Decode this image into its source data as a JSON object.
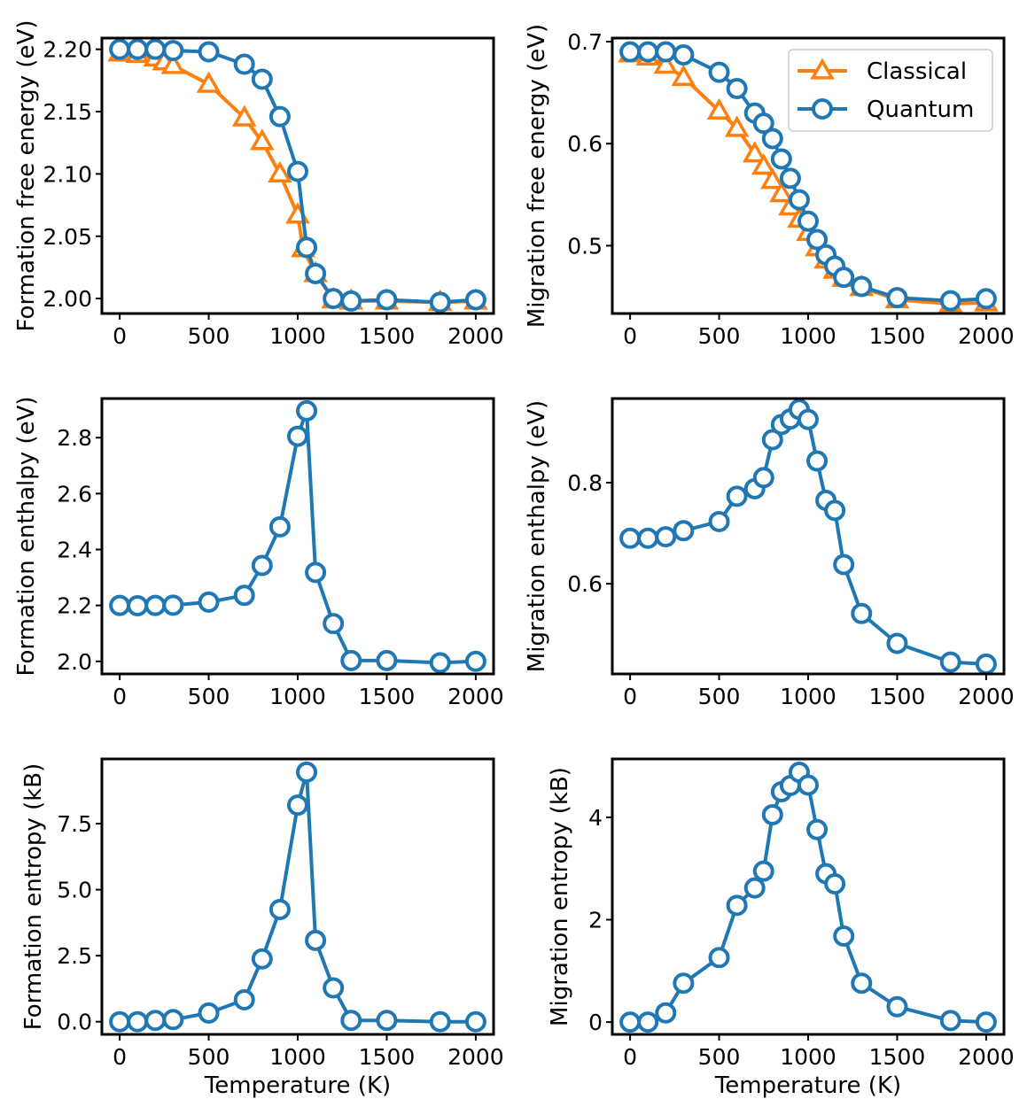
{
  "colors": {
    "classical": "#ff7f0e",
    "quantum": "#1f77b4",
    "axis": "#000000"
  },
  "legend": {
    "placement": "upper-right",
    "entries": [
      "Classical",
      "Quantum"
    ]
  },
  "chart_data": [
    {
      "id": "formation-free-energy",
      "type": "line",
      "ylabel": "Formation free energy (eV)",
      "xlabel": "",
      "xlim": [
        -100,
        2100
      ],
      "ylim": [
        1.988,
        2.209
      ],
      "xticks": [
        0,
        500,
        1000,
        1500,
        2000
      ],
      "xtick_labels": [
        "0",
        "500",
        "1000",
        "1500",
        "2000"
      ],
      "yticks": [
        2.0,
        2.05,
        2.1,
        2.15,
        2.2
      ],
      "ytick_labels": [
        "2.00",
        "2.05",
        "2.10",
        "2.15",
        "2.20"
      ],
      "legend": false,
      "series": [
        {
          "name": "Classical",
          "marker": "triangle",
          "color": "#ff7f0e",
          "x": [
            0,
            100,
            200,
            250,
            300,
            500,
            700,
            800,
            900,
            1000,
            1030,
            1100,
            1200,
            1300,
            1500,
            1800,
            2000
          ],
          "y": [
            2.197,
            2.196,
            2.193,
            2.19,
            2.187,
            2.172,
            2.145,
            2.126,
            2.1,
            2.067,
            2.04,
            2.02,
            1.999,
            1.998,
            1.998,
            1.997,
            1.998
          ]
        },
        {
          "name": "Quantum",
          "marker": "circle",
          "color": "#1f77b4",
          "x": [
            0,
            100,
            200,
            300,
            500,
            700,
            800,
            900,
            1000,
            1050,
            1100,
            1200,
            1300,
            1500,
            1800,
            2000
          ],
          "y": [
            2.2,
            2.2,
            2.2,
            2.199,
            2.198,
            2.188,
            2.176,
            2.146,
            2.102,
            2.041,
            2.02,
            2.0,
            1.998,
            1.999,
            1.997,
            1.999
          ]
        }
      ]
    },
    {
      "id": "migration-free-energy",
      "type": "line",
      "ylabel": "Migration free energy (eV)",
      "xlabel": "",
      "xlim": [
        -100,
        2100
      ],
      "ylim": [
        0.4335,
        0.7035
      ],
      "xticks": [
        0,
        500,
        1000,
        1500,
        2000
      ],
      "xtick_labels": [
        "0",
        "500",
        "1000",
        "1500",
        "2000"
      ],
      "yticks": [
        0.5,
        0.6,
        0.7
      ],
      "ytick_labels": [
        "0.5",
        "0.6",
        "0.7"
      ],
      "legend": true,
      "series": [
        {
          "name": "Classical",
          "marker": "triangle",
          "color": "#ff7f0e",
          "x": [
            0,
            100,
            200,
            300,
            500,
            600,
            700,
            750,
            800,
            850,
            900,
            950,
            1000,
            1050,
            1100,
            1150,
            1200,
            1300,
            1500,
            1800,
            2000
          ],
          "y": [
            0.688,
            0.685,
            0.677,
            0.665,
            0.632,
            0.615,
            0.59,
            0.578,
            0.564,
            0.551,
            0.538,
            0.526,
            0.513,
            0.498,
            0.486,
            0.476,
            0.468,
            0.459,
            0.447,
            0.443,
            0.444
          ]
        },
        {
          "name": "Quantum",
          "marker": "circle",
          "color": "#1f77b4",
          "x": [
            0,
            100,
            200,
            300,
            500,
            600,
            700,
            750,
            800,
            850,
            900,
            950,
            1000,
            1050,
            1100,
            1150,
            1200,
            1300,
            1500,
            1800,
            2000
          ],
          "y": [
            0.69,
            0.69,
            0.69,
            0.687,
            0.67,
            0.654,
            0.63,
            0.62,
            0.605,
            0.585,
            0.566,
            0.545,
            0.524,
            0.506,
            0.491,
            0.48,
            0.469,
            0.46,
            0.449,
            0.446,
            0.448
          ]
        }
      ]
    },
    {
      "id": "formation-enthalpy",
      "type": "line",
      "ylabel": "Formation enthalpy (eV)",
      "xlabel": "",
      "xlim": [
        -100,
        2100
      ],
      "ylim": [
        1.955,
        2.94
      ],
      "xticks": [
        0,
        500,
        1000,
        1500,
        2000
      ],
      "xtick_labels": [
        "0",
        "500",
        "1000",
        "1500",
        "2000"
      ],
      "yticks": [
        2.0,
        2.2,
        2.4,
        2.6,
        2.8
      ],
      "ytick_labels": [
        "2.0",
        "2.2",
        "2.4",
        "2.6",
        "2.8"
      ],
      "legend": false,
      "series": [
        {
          "name": "Quantum",
          "marker": "circle",
          "color": "#1f77b4",
          "x": [
            0,
            100,
            200,
            300,
            500,
            700,
            800,
            900,
            1000,
            1050,
            1100,
            1200,
            1300,
            1500,
            1800,
            2000
          ],
          "y": [
            2.2,
            2.199,
            2.2,
            2.201,
            2.212,
            2.236,
            2.343,
            2.481,
            2.805,
            2.896,
            2.318,
            2.135,
            2.003,
            2.003,
            1.995,
            2.0
          ]
        }
      ]
    },
    {
      "id": "migration-enthalpy",
      "type": "line",
      "ylabel": "Migration enthalpy (eV)",
      "xlabel": "",
      "xlim": [
        -100,
        2100
      ],
      "ylim": [
        0.4215,
        0.9665
      ],
      "xticks": [
        0,
        500,
        1000,
        1500,
        2000
      ],
      "xtick_labels": [
        "0",
        "500",
        "1000",
        "1500",
        "2000"
      ],
      "yticks": [
        0.6,
        0.8
      ],
      "ytick_labels": [
        "0.6",
        "0.8"
      ],
      "legend": false,
      "series": [
        {
          "name": "Quantum",
          "marker": "circle",
          "color": "#1f77b4",
          "x": [
            0,
            100,
            200,
            300,
            500,
            600,
            700,
            750,
            800,
            850,
            900,
            950,
            1000,
            1050,
            1100,
            1150,
            1200,
            1300,
            1500,
            1800,
            2000
          ],
          "y": [
            0.69,
            0.69,
            0.693,
            0.705,
            0.723,
            0.773,
            0.788,
            0.81,
            0.885,
            0.915,
            0.926,
            0.945,
            0.925,
            0.843,
            0.765,
            0.745,
            0.638,
            0.541,
            0.482,
            0.445,
            0.441
          ]
        }
      ]
    },
    {
      "id": "formation-entropy",
      "type": "line",
      "ylabel": "Formation entropy (kB)",
      "xlabel": "Temperature (K)",
      "xlim": [
        -100,
        2100
      ],
      "ylim": [
        -0.48,
        9.95
      ],
      "xticks": [
        0,
        500,
        1000,
        1500,
        2000
      ],
      "xtick_labels": [
        "0",
        "500",
        "1000",
        "1500",
        "2000"
      ],
      "yticks": [
        0.0,
        2.5,
        5.0,
        7.5
      ],
      "ytick_labels": [
        "0.0",
        "2.5",
        "5.0",
        "7.5"
      ],
      "legend": false,
      "series": [
        {
          "name": "Quantum",
          "marker": "circle",
          "color": "#1f77b4",
          "x": [
            0,
            100,
            200,
            300,
            500,
            700,
            800,
            900,
            1000,
            1050,
            1100,
            1200,
            1300,
            1500,
            1800,
            2000
          ],
          "y": [
            0.0,
            0.0,
            0.05,
            0.08,
            0.33,
            0.83,
            2.38,
            4.25,
            8.2,
            9.45,
            3.08,
            1.28,
            0.05,
            0.05,
            0.0,
            0.0
          ]
        }
      ]
    },
    {
      "id": "migration-entropy",
      "type": "line",
      "ylabel": "Migration entropy (kB)",
      "xlabel": "Temperature (K)",
      "xlim": [
        -100,
        2100
      ],
      "ylim": [
        -0.24,
        5.14
      ],
      "xticks": [
        0,
        500,
        1000,
        1500,
        2000
      ],
      "xtick_labels": [
        "0",
        "500",
        "1000",
        "1500",
        "2000"
      ],
      "yticks": [
        0,
        2,
        4
      ],
      "ytick_labels": [
        "0",
        "2",
        "4"
      ],
      "legend": false,
      "series": [
        {
          "name": "Quantum",
          "marker": "circle",
          "color": "#1f77b4",
          "x": [
            0,
            100,
            200,
            300,
            500,
            600,
            700,
            750,
            800,
            850,
            900,
            950,
            1000,
            1050,
            1100,
            1150,
            1200,
            1300,
            1500,
            1800,
            2000
          ],
          "y": [
            0.0,
            0.0,
            0.18,
            0.76,
            1.26,
            2.28,
            2.62,
            2.95,
            4.05,
            4.5,
            4.62,
            4.88,
            4.63,
            3.76,
            2.9,
            2.7,
            1.68,
            0.76,
            0.3,
            0.03,
            0.0
          ]
        }
      ]
    }
  ]
}
